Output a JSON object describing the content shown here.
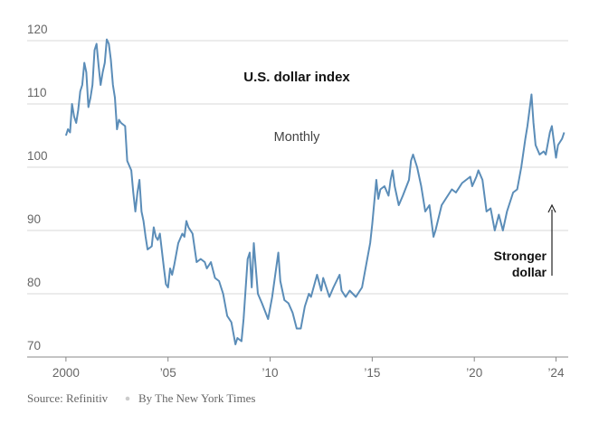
{
  "chart_data": {
    "type": "line",
    "title": "U.S. dollar index",
    "subtitle": "Monthly",
    "annotation": "Stronger dollar",
    "source": "Source: Refinitiv",
    "credit": "By The New York Times",
    "xlim": [
      1998.1,
      2024.6
    ],
    "xticks": [
      {
        "value": 2000,
        "label": "2000"
      },
      {
        "value": 2005,
        "label": "’05"
      },
      {
        "value": 2010,
        "label": "’10"
      },
      {
        "value": 2015,
        "label": "’15"
      },
      {
        "value": 2020,
        "label": "’20"
      },
      {
        "value": 2024,
        "label": "’24"
      }
    ],
    "ylim": [
      70,
      120
    ],
    "yticks": [
      70,
      80,
      90,
      100,
      110,
      120
    ],
    "grid": true,
    "x": [
      2000.0,
      2000.1,
      2000.2,
      2000.3,
      2000.4,
      2000.5,
      2000.6,
      2000.7,
      2000.8,
      2000.9,
      2001.0,
      2001.1,
      2001.2,
      2001.3,
      2001.4,
      2001.5,
      2001.6,
      2001.7,
      2001.8,
      2001.9,
      2002.0,
      2002.1,
      2002.2,
      2002.3,
      2002.4,
      2002.5,
      2002.6,
      2002.7,
      2002.9,
      2003.0,
      2003.2,
      2003.3,
      2003.4,
      2003.5,
      2003.6,
      2003.7,
      2003.8,
      2003.9,
      2004.0,
      2004.2,
      2004.3,
      2004.4,
      2004.5,
      2004.6,
      2004.8,
      2004.9,
      2005.0,
      2005.1,
      2005.2,
      2005.3,
      2005.5,
      2005.7,
      2005.8,
      2005.9,
      2006.0,
      2006.2,
      2006.4,
      2006.6,
      2006.8,
      2006.9,
      2007.1,
      2007.3,
      2007.5,
      2007.7,
      2007.9,
      2008.1,
      2008.3,
      2008.4,
      2008.6,
      2008.7,
      2008.9,
      2009.0,
      2009.1,
      2009.2,
      2009.4,
      2009.6,
      2009.9,
      2010.1,
      2010.4,
      2010.5,
      2010.7,
      2010.9,
      2011.1,
      2011.3,
      2011.5,
      2011.7,
      2011.9,
      2012.0,
      2012.3,
      2012.5,
      2012.6,
      2012.9,
      2013.1,
      2013.4,
      2013.5,
      2013.7,
      2013.9,
      2014.2,
      2014.4,
      2014.5,
      2014.7,
      2014.9,
      2015.0,
      2015.2,
      2015.3,
      2015.4,
      2015.6,
      2015.8,
      2015.9,
      2016.0,
      2016.1,
      2016.3,
      2016.5,
      2016.8,
      2016.9,
      2017.0,
      2017.2,
      2017.4,
      2017.6,
      2017.8,
      2018.0,
      2018.1,
      2018.4,
      2018.6,
      2018.9,
      2019.1,
      2019.4,
      2019.6,
      2019.8,
      2019.9,
      2020.1,
      2020.2,
      2020.4,
      2020.6,
      2020.8,
      2021.0,
      2021.2,
      2021.4,
      2021.6,
      2021.9,
      2022.1,
      2022.3,
      2022.5,
      2022.6,
      2022.8,
      2022.9,
      2023.0,
      2023.2,
      2023.4,
      2023.5,
      2023.7,
      2023.8,
      2023.9,
      2024.0,
      2024.1,
      2024.3,
      2024.4
    ],
    "series": [
      {
        "name": "U.S. dollar index",
        "color": "#5b8db8",
        "values": [
          105,
          106,
          105.5,
          110,
          108,
          107,
          109,
          112,
          113,
          116.5,
          115,
          109.5,
          111,
          113,
          118.5,
          119.5,
          116,
          113,
          115,
          116.5,
          120.2,
          119.5,
          117,
          113,
          111,
          106,
          107.5,
          107,
          106.5,
          101,
          99.5,
          96,
          93,
          96,
          98,
          93,
          91.5,
          89,
          87,
          87.5,
          90.5,
          89,
          88.5,
          89.5,
          84,
          81.5,
          81,
          84,
          83,
          84.5,
          88,
          89.5,
          89,
          91.5,
          90.5,
          89.5,
          85,
          85.5,
          85,
          84,
          85,
          82.5,
          82,
          80,
          76.5,
          75.5,
          72,
          73,
          72.5,
          76,
          85.5,
          86.5,
          81,
          88,
          80,
          78.5,
          76,
          79.5,
          86.5,
          82,
          79,
          78.5,
          77,
          74.5,
          74.5,
          78,
          80,
          79.5,
          83,
          80.5,
          82.5,
          79.5,
          81,
          83,
          80.5,
          79.5,
          80.5,
          79.5,
          80.5,
          81,
          84.5,
          88,
          91,
          98,
          95,
          96.5,
          97,
          95.5,
          98,
          99.5,
          97,
          94,
          95.5,
          98,
          101,
          102,
          100,
          97,
          93,
          94,
          89,
          90,
          94,
          95,
          96.5,
          96,
          97.5,
          98,
          98.5,
          97,
          98.5,
          99.5,
          98,
          93,
          93.5,
          90,
          92.5,
          90,
          93,
          96,
          96.5,
          100,
          104.5,
          106.5,
          111.5,
          107,
          103.5,
          102,
          102.5,
          102,
          105.5,
          106.5,
          104,
          101.5,
          103.5,
          104.5,
          105.5
        ]
      }
    ]
  }
}
